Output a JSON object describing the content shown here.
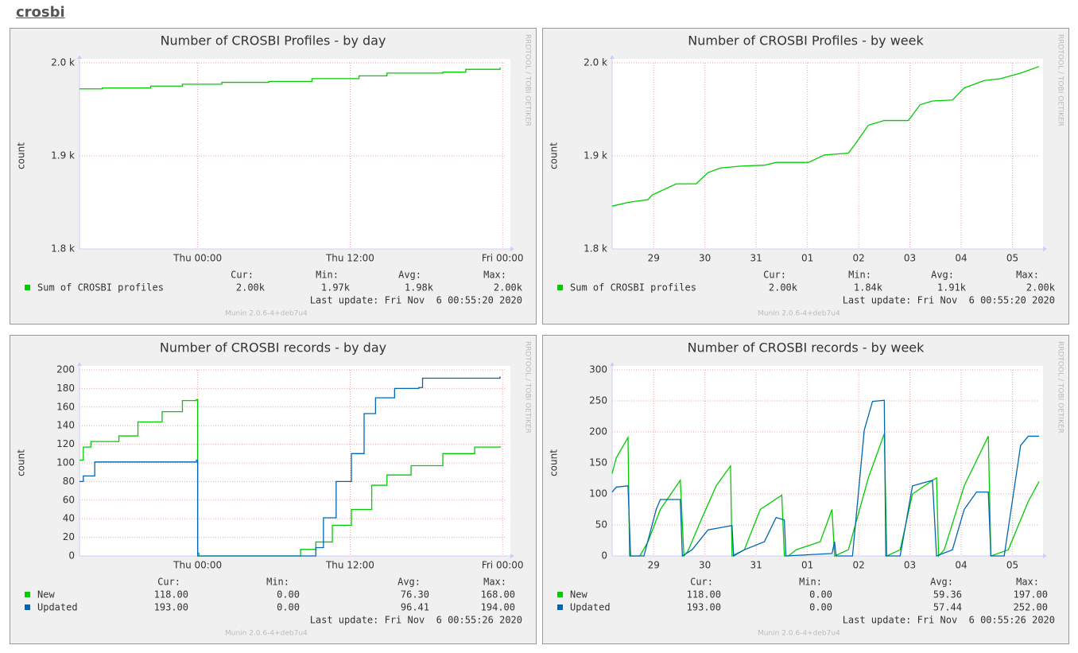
{
  "header": "crosbi",
  "chart_data": [
    {
      "type": "line",
      "step": true,
      "title": "Number of CROSBI Profiles - by day",
      "ylabel": "count",
      "watermark": "RRDTOOL / TOBI OETIKER",
      "footer": "Munin 2.0.6-4+deb7u4",
      "last_update": "Last update: Fri Nov  6 00:55:20 2020",
      "stat_headers": [
        "Cur:",
        "Min:",
        "Avg:",
        "Max:"
      ],
      "xlim": [
        -9.3,
        24.3
      ],
      "xticks": [
        {
          "value": 0,
          "label": "Thu 00:00"
        },
        {
          "value": 12,
          "label": "Thu 12:00"
        },
        {
          "value": 24,
          "label": "Fri 00:00"
        }
      ],
      "ylim": [
        1800,
        2000
      ],
      "yticks": [
        {
          "value": 1800,
          "label": "1.8 k"
        },
        {
          "value": 1900,
          "label": "1.9 k"
        },
        {
          "value": 2000,
          "label": "2.0 k"
        }
      ],
      "grid": true,
      "series": [
        {
          "name": "Sum of CROSBI profiles",
          "color": "#00cc00",
          "stats": [
            "2.00k",
            "1.97k",
            "1.98k",
            "2.00k"
          ],
          "x": [
            -9.3,
            -7.5,
            -3.7,
            -1.2,
            1.9,
            5.6,
            9.0,
            12.7,
            14.9,
            19.3,
            21.1,
            23.8
          ],
          "values": [
            1972,
            1973,
            1975,
            1977,
            1979,
            1980,
            1983,
            1986,
            1989,
            1990,
            1993,
            1995
          ]
        }
      ]
    },
    {
      "type": "line",
      "step": false,
      "title": "Number of CROSBI Profiles - by week",
      "ylabel": "count",
      "watermark": "RRDTOOL / TOBI OETIKER",
      "footer": "Munin 2.0.6-4+deb7u4",
      "last_update": "Last update: Fri Nov  6 00:55:20 2020",
      "stat_headers": [
        "Cur:",
        "Min:",
        "Avg:",
        "Max:"
      ],
      "xlim": [
        -0.31,
        8.02
      ],
      "xticks": [
        {
          "value": 0.5,
          "label": "29"
        },
        {
          "value": 1.5,
          "label": "30"
        },
        {
          "value": 2.5,
          "label": "31"
        },
        {
          "value": 3.5,
          "label": "01"
        },
        {
          "value": 4.5,
          "label": "02"
        },
        {
          "value": 5.5,
          "label": "03"
        },
        {
          "value": 6.5,
          "label": "04"
        },
        {
          "value": 7.5,
          "label": "05"
        }
      ],
      "ylim": [
        1800,
        2000
      ],
      "yticks": [
        {
          "value": 1800,
          "label": "1.8 k"
        },
        {
          "value": 1900,
          "label": "1.9 k"
        },
        {
          "value": 2000,
          "label": "2.0 k"
        }
      ],
      "grid": true,
      "series": [
        {
          "name": "Sum of CROSBI profiles",
          "color": "#00cc00",
          "stats": [
            "2.00k",
            "1.84k",
            "1.91k",
            "2.00k"
          ],
          "x": [
            -0.31,
            0,
            0.39,
            0.47,
            0.94,
            1.33,
            1.56,
            1.8,
            2.19,
            2.66,
            2.89,
            3.52,
            3.83,
            4.3,
            4.45,
            4.69,
            5.0,
            5.47,
            5.7,
            5.94,
            6.33,
            6.56,
            6.95,
            7.27,
            7.66,
            8.02
          ],
          "values": [
            1846,
            1850,
            1853,
            1858,
            1870,
            1870,
            1882,
            1887,
            1889,
            1890,
            1893,
            1893,
            1901,
            1903,
            1914,
            1933,
            1938,
            1938,
            1955,
            1959,
            1960,
            1973,
            1981,
            1983,
            1989,
            1996
          ]
        }
      ]
    },
    {
      "type": "line",
      "step": true,
      "title": "Number of CROSBI records - by day",
      "ylabel": "count",
      "watermark": "RRDTOOL / TOBI OETIKER",
      "footer": "Munin 2.0.6-4+deb7u4",
      "last_update": "Last update: Fri Nov  6 00:55:26 2020",
      "stat_headers": [
        "Cur:",
        "Min:",
        "Avg:",
        "Max:"
      ],
      "xlim": [
        -9.3,
        24.3
      ],
      "xticks": [
        {
          "value": 0,
          "label": "Thu 00:00"
        },
        {
          "value": 12,
          "label": "Thu 12:00"
        },
        {
          "value": 24,
          "label": "Fri 00:00"
        }
      ],
      "ylim": [
        0,
        200
      ],
      "yticks": [
        0,
        20,
        40,
        60,
        80,
        100,
        120,
        140,
        160,
        180,
        200
      ],
      "grid": true,
      "series": [
        {
          "name": "New",
          "color": "#00cc00",
          "stats": [
            "118.00",
            "0.00",
            "76.30",
            "168.00"
          ],
          "x": [
            -9.3,
            -9.0,
            -8.4,
            -6.2,
            -4.7,
            -2.8,
            -1.2,
            -0.1,
            0,
            0.1,
            6.8,
            8.1,
            9.3,
            10.6,
            12.1,
            13.7,
            14.9,
            16.8,
            19.3,
            21.8,
            23.8
          ],
          "values": [
            103,
            117,
            123,
            129,
            144,
            155,
            167,
            168,
            3,
            0,
            0,
            7,
            15,
            33,
            50,
            76,
            87,
            97,
            110,
            117,
            118
          ]
        },
        {
          "name": "Updated",
          "color": "#0066b3",
          "stats": [
            "193.00",
            "0.00",
            "96.41",
            "194.00"
          ],
          "x": [
            -9.3,
            -9.0,
            -8.1,
            -4.4,
            -0.1,
            0,
            8.1,
            9.3,
            9.9,
            10.9,
            12.1,
            13.1,
            14.0,
            15.5,
            17.4,
            17.7,
            23.8
          ],
          "values": [
            80,
            86,
            101,
            101,
            103,
            0,
            0,
            9,
            41,
            80,
            110,
            153,
            170,
            180,
            181,
            191,
            193
          ]
        }
      ]
    },
    {
      "type": "line",
      "step": false,
      "title": "Number of CROSBI records - by week",
      "ylabel": "count",
      "watermark": "RRDTOOL / TOBI OETIKER",
      "footer": "Munin 2.0.6-4+deb7u4",
      "last_update": "Last update: Fri Nov  6 00:55:26 2020",
      "stat_headers": [
        "Cur:",
        "Min:",
        "Avg:",
        "Max:"
      ],
      "xlim": [
        -0.31,
        8.02
      ],
      "xticks": [
        {
          "value": 0.5,
          "label": "29"
        },
        {
          "value": 1.5,
          "label": "30"
        },
        {
          "value": 2.5,
          "label": "31"
        },
        {
          "value": 3.5,
          "label": "01"
        },
        {
          "value": 4.5,
          "label": "02"
        },
        {
          "value": 5.5,
          "label": "03"
        },
        {
          "value": 6.5,
          "label": "04"
        },
        {
          "value": 7.5,
          "label": "05"
        }
      ],
      "ylim": [
        0,
        300
      ],
      "yticks": [
        0,
        50,
        100,
        150,
        200,
        250,
        300
      ],
      "grid": true,
      "series": [
        {
          "name": "New",
          "color": "#00cc00",
          "stats": [
            "118.00",
            "0.00",
            "59.36",
            "197.00"
          ],
          "x": [
            -0.31,
            -0.23,
            0,
            0.03,
            0.23,
            0.39,
            0.63,
            1.02,
            1.09,
            1.17,
            1.41,
            1.72,
            2.0,
            2.03,
            2.27,
            2.58,
            3.0,
            3.05,
            3.13,
            3.28,
            3.75,
            3.98,
            4.03,
            4.3,
            4.69,
            5.0,
            5.05,
            5.31,
            5.55,
            6.02,
            6.06,
            6.17,
            6.56,
            7.03,
            7.08,
            7.42,
            7.81,
            8.02
          ],
          "values": [
            133,
            158,
            191,
            0,
            0,
            23,
            75,
            122,
            0,
            8,
            55,
            113,
            145,
            0,
            10,
            75,
            98,
            0,
            0,
            10,
            23,
            75,
            0,
            10,
            126,
            197,
            0,
            10,
            100,
            126,
            0,
            10,
            113,
            193,
            0,
            10,
            88,
            120
          ]
        },
        {
          "name": "Updated",
          "color": "#0066b3",
          "stats": [
            "193.00",
            "0.00",
            "57.44",
            "252.00"
          ],
          "x": [
            -0.31,
            -0.23,
            0,
            0.05,
            0.31,
            0.55,
            0.63,
            1.02,
            1.06,
            1.25,
            1.56,
            2.03,
            2.06,
            2.27,
            2.66,
            2.89,
            3.05,
            3.08,
            3.98,
            4.03,
            4.06,
            4.38,
            4.61,
            4.77,
            5.0,
            5.03,
            5.31,
            5.55,
            5.94,
            6.02,
            6.33,
            6.56,
            6.8,
            7.03,
            7.08,
            7.34,
            7.66,
            7.81,
            8.02
          ],
          "values": [
            103,
            111,
            113,
            0,
            0,
            75,
            91,
            91,
            0,
            10,
            42,
            49,
            0,
            10,
            23,
            62,
            58,
            0,
            4,
            23,
            0,
            0,
            203,
            249,
            251,
            0,
            0,
            113,
            122,
            0,
            10,
            75,
            103,
            103,
            0,
            0,
            178,
            193,
            193
          ]
        }
      ]
    }
  ]
}
